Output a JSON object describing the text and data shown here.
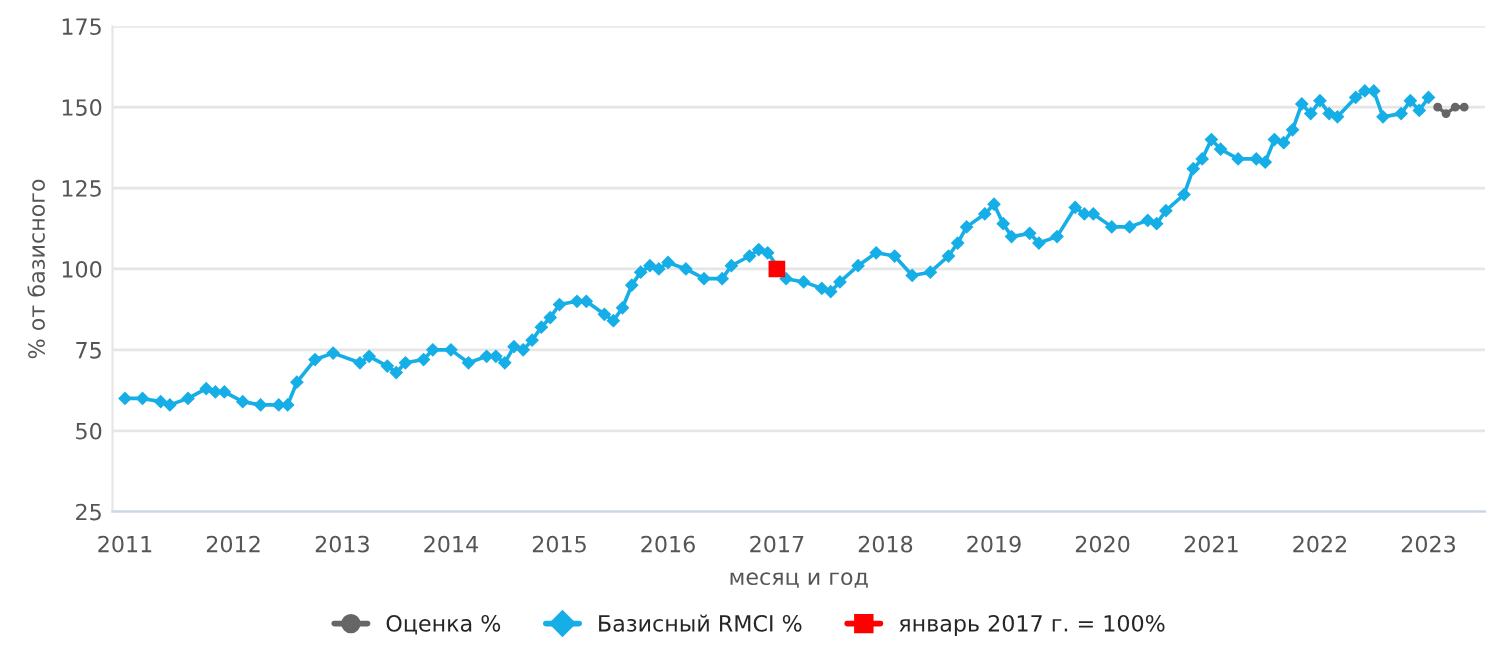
{
  "chart_data": {
    "type": "line",
    "xlabel": "месяц и год",
    "ylabel": "% от базисного",
    "xlim": [
      "2010-11-20",
      "2023-07-10"
    ],
    "xticks": [
      "2011",
      "2012",
      "2013",
      "2014",
      "2015",
      "2016",
      "2017",
      "2018",
      "2019",
      "2020",
      "2021",
      "2022",
      "2023"
    ],
    "ylim": [
      25,
      175
    ],
    "yticks": [
      25,
      50,
      75,
      100,
      125,
      150,
      175
    ],
    "grid": "y",
    "legend": "bottom",
    "series": [
      {
        "name": "Оценка %",
        "color": "#666666",
        "marker": "circle",
        "x": [
          "2023-02",
          "2023-03",
          "2023-04",
          "2023-05"
        ],
        "values": [
          150,
          148,
          150,
          150
        ]
      },
      {
        "name": "Базисный RMCI %",
        "color": "#16aee6",
        "marker": "diamond",
        "x": [
          "2011-01",
          "2011-03",
          "2011-05",
          "2011-06",
          "2011-08",
          "2011-10",
          "2011-11",
          "2011-12",
          "2012-02",
          "2012-04",
          "2012-06",
          "2012-07",
          "2012-08",
          "2012-10",
          "2012-12",
          "2013-03",
          "2013-04",
          "2013-06",
          "2013-07",
          "2013-08",
          "2013-10",
          "2013-11",
          "2014-01",
          "2014-03",
          "2014-05",
          "2014-06",
          "2014-07",
          "2014-08",
          "2014-09",
          "2014-10",
          "2014-11",
          "2014-12",
          "2015-01",
          "2015-03",
          "2015-04",
          "2015-06",
          "2015-07",
          "2015-08",
          "2015-09",
          "2015-10",
          "2015-11",
          "2015-12",
          "2016-01",
          "2016-03",
          "2016-05",
          "2016-07",
          "2016-08",
          "2016-10",
          "2016-11",
          "2016-12",
          "2017-02",
          "2017-04",
          "2017-06",
          "2017-07",
          "2017-08",
          "2017-10",
          "2017-12",
          "2018-02",
          "2018-04",
          "2018-06",
          "2018-08",
          "2018-09",
          "2018-10",
          "2018-12",
          "2019-01",
          "2019-02",
          "2019-03",
          "2019-05",
          "2019-06",
          "2019-08",
          "2019-10",
          "2019-11",
          "2019-12",
          "2020-02",
          "2020-04",
          "2020-06",
          "2020-07",
          "2020-08",
          "2020-10",
          "2020-11",
          "2020-12",
          "2021-01",
          "2021-02",
          "2021-04",
          "2021-06",
          "2021-07",
          "2021-08",
          "2021-09",
          "2021-10",
          "2021-11",
          "2021-12",
          "2022-01",
          "2022-02",
          "2022-03",
          "2022-05",
          "2022-06",
          "2022-07",
          "2022-08",
          "2022-10",
          "2022-11",
          "2022-12",
          "2023-01"
        ],
        "values": [
          60,
          60,
          59,
          58,
          60,
          63,
          62,
          62,
          59,
          58,
          58,
          58,
          65,
          72,
          74,
          71,
          73,
          70,
          68,
          71,
          72,
          75,
          75,
          71,
          73,
          73,
          71,
          76,
          75,
          78,
          82,
          85,
          89,
          90,
          90,
          86,
          84,
          88,
          95,
          99,
          101,
          100,
          102,
          100,
          97,
          97,
          101,
          104,
          106,
          105,
          97,
          96,
          94,
          93,
          96,
          101,
          105,
          104,
          98,
          99,
          104,
          108,
          113,
          117,
          120,
          114,
          110,
          111,
          108,
          110,
          119,
          117,
          117,
          113,
          113,
          115,
          114,
          118,
          123,
          131,
          134,
          140,
          137,
          134,
          134,
          133,
          140,
          139,
          143,
          151,
          148,
          152,
          148,
          147,
          153,
          155,
          155,
          147,
          148,
          152,
          149,
          153
        ]
      },
      {
        "name": "январь 2017 г. = 100%",
        "color": "#ff0000",
        "marker": "square",
        "x": [
          "2017-01"
        ],
        "values": [
          100
        ]
      }
    ]
  }
}
